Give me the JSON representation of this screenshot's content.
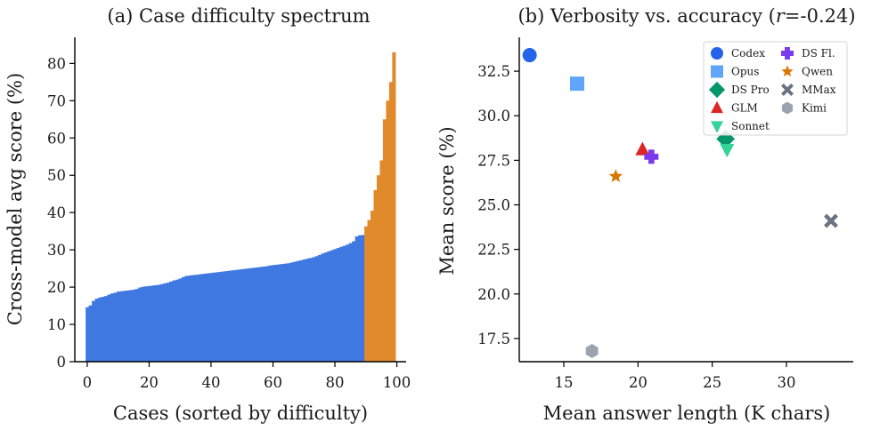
{
  "chart_data": [
    {
      "type": "bar",
      "title": "(a) Case difficulty spectrum",
      "xlabel": "Cases (sorted by difficulty)",
      "ylabel": "Cross-model avg score (%)",
      "xlim": [
        -4,
        103
      ],
      "ylim": [
        0,
        87
      ],
      "xticks": [
        0,
        20,
        40,
        60,
        80,
        100
      ],
      "yticks": [
        0,
        10,
        20,
        30,
        40,
        50,
        60,
        70,
        80
      ],
      "grid": false,
      "highlight_from_index": 90,
      "colors": {
        "base": "#3f78e0",
        "highlight": "#e08a2b"
      },
      "x": [
        0,
        1,
        2,
        3,
        4,
        5,
        6,
        7,
        8,
        9,
        10,
        11,
        12,
        13,
        14,
        15,
        16,
        17,
        18,
        19,
        20,
        21,
        22,
        23,
        24,
        25,
        26,
        27,
        28,
        29,
        30,
        31,
        32,
        33,
        34,
        35,
        36,
        37,
        38,
        39,
        40,
        41,
        42,
        43,
        44,
        45,
        46,
        47,
        48,
        49,
        50,
        51,
        52,
        53,
        54,
        55,
        56,
        57,
        58,
        59,
        60,
        61,
        62,
        63,
        64,
        65,
        66,
        67,
        68,
        69,
        70,
        71,
        72,
        73,
        74,
        75,
        76,
        77,
        78,
        79,
        80,
        81,
        82,
        83,
        84,
        85,
        86,
        87,
        88,
        89,
        90,
        91,
        92,
        93,
        94,
        95,
        96,
        97,
        98,
        99
      ],
      "values": [
        14.6,
        15.1,
        16.3,
        16.9,
        17.2,
        17.4,
        17.6,
        18.0,
        18.3,
        18.5,
        18.8,
        18.9,
        19.0,
        19.1,
        19.2,
        19.3,
        19.5,
        19.9,
        20.1,
        20.2,
        20.3,
        20.4,
        20.5,
        20.6,
        20.8,
        21.0,
        21.2,
        21.5,
        21.8,
        22.0,
        22.3,
        22.7,
        23.0,
        23.1,
        23.2,
        23.3,
        23.4,
        23.5,
        23.6,
        23.7,
        23.8,
        23.9,
        24.0,
        24.1,
        24.2,
        24.3,
        24.4,
        24.5,
        24.6,
        24.7,
        24.8,
        24.9,
        25.0,
        25.1,
        25.2,
        25.3,
        25.4,
        25.5,
        25.6,
        25.8,
        25.9,
        26.0,
        26.1,
        26.2,
        26.3,
        26.4,
        26.6,
        26.8,
        27.0,
        27.2,
        27.4,
        27.6,
        27.8,
        28.0,
        28.3,
        28.6,
        29.0,
        29.3,
        29.6,
        29.9,
        30.2,
        30.5,
        30.8,
        31.1,
        31.4,
        31.8,
        32.3,
        33.6,
        33.9,
        34.0,
        36.3,
        38.0,
        40.5,
        46.0,
        50.0,
        54.0,
        65.0,
        70.0,
        75.0,
        83.0
      ]
    },
    {
      "type": "scatter",
      "title": "(b) Verbosity vs. accuracy (r=-0.24)",
      "title_parts": {
        "prefix": "(b) Verbosity vs. accuracy (",
        "italic": "r",
        "suffix": "=-0.24)"
      },
      "xlabel": "Mean answer length (K chars)",
      "ylabel": "Mean score (%)",
      "xlim": [
        12,
        34.5
      ],
      "ylim": [
        16.2,
        34.4
      ],
      "xticks": [
        15,
        20,
        25,
        30
      ],
      "yticks": [
        17.5,
        20.0,
        22.5,
        25.0,
        27.5,
        30.0,
        32.5
      ],
      "grid": false,
      "legend": "top-right",
      "legend_columns": 2,
      "series": [
        {
          "name": "Codex",
          "x": 12.7,
          "y": 33.4,
          "marker": "circle",
          "color": "#2563eb"
        },
        {
          "name": "Opus",
          "x": 15.9,
          "y": 31.8,
          "marker": "square",
          "color": "#60a5fa"
        },
        {
          "name": "DS Pro",
          "x": 25.9,
          "y": 28.7,
          "marker": "diamond",
          "color": "#059669"
        },
        {
          "name": "GLM",
          "x": 20.3,
          "y": 28.1,
          "marker": "triangle-up",
          "color": "#dc2626"
        },
        {
          "name": "Sonnet",
          "x": 26.0,
          "y": 28.1,
          "marker": "triangle-down",
          "color": "#34d399"
        },
        {
          "name": "DS Fl.",
          "x": 20.9,
          "y": 27.7,
          "marker": "plus",
          "color": "#7c3aed"
        },
        {
          "name": "Qwen",
          "x": 18.5,
          "y": 26.6,
          "marker": "star",
          "color": "#d97706"
        },
        {
          "name": "MMax",
          "x": 33.0,
          "y": 24.1,
          "marker": "x",
          "color": "#6b7280"
        },
        {
          "name": "Kimi",
          "x": 16.9,
          "y": 16.8,
          "marker": "hexagon",
          "color": "#9ca3af"
        }
      ]
    }
  ]
}
